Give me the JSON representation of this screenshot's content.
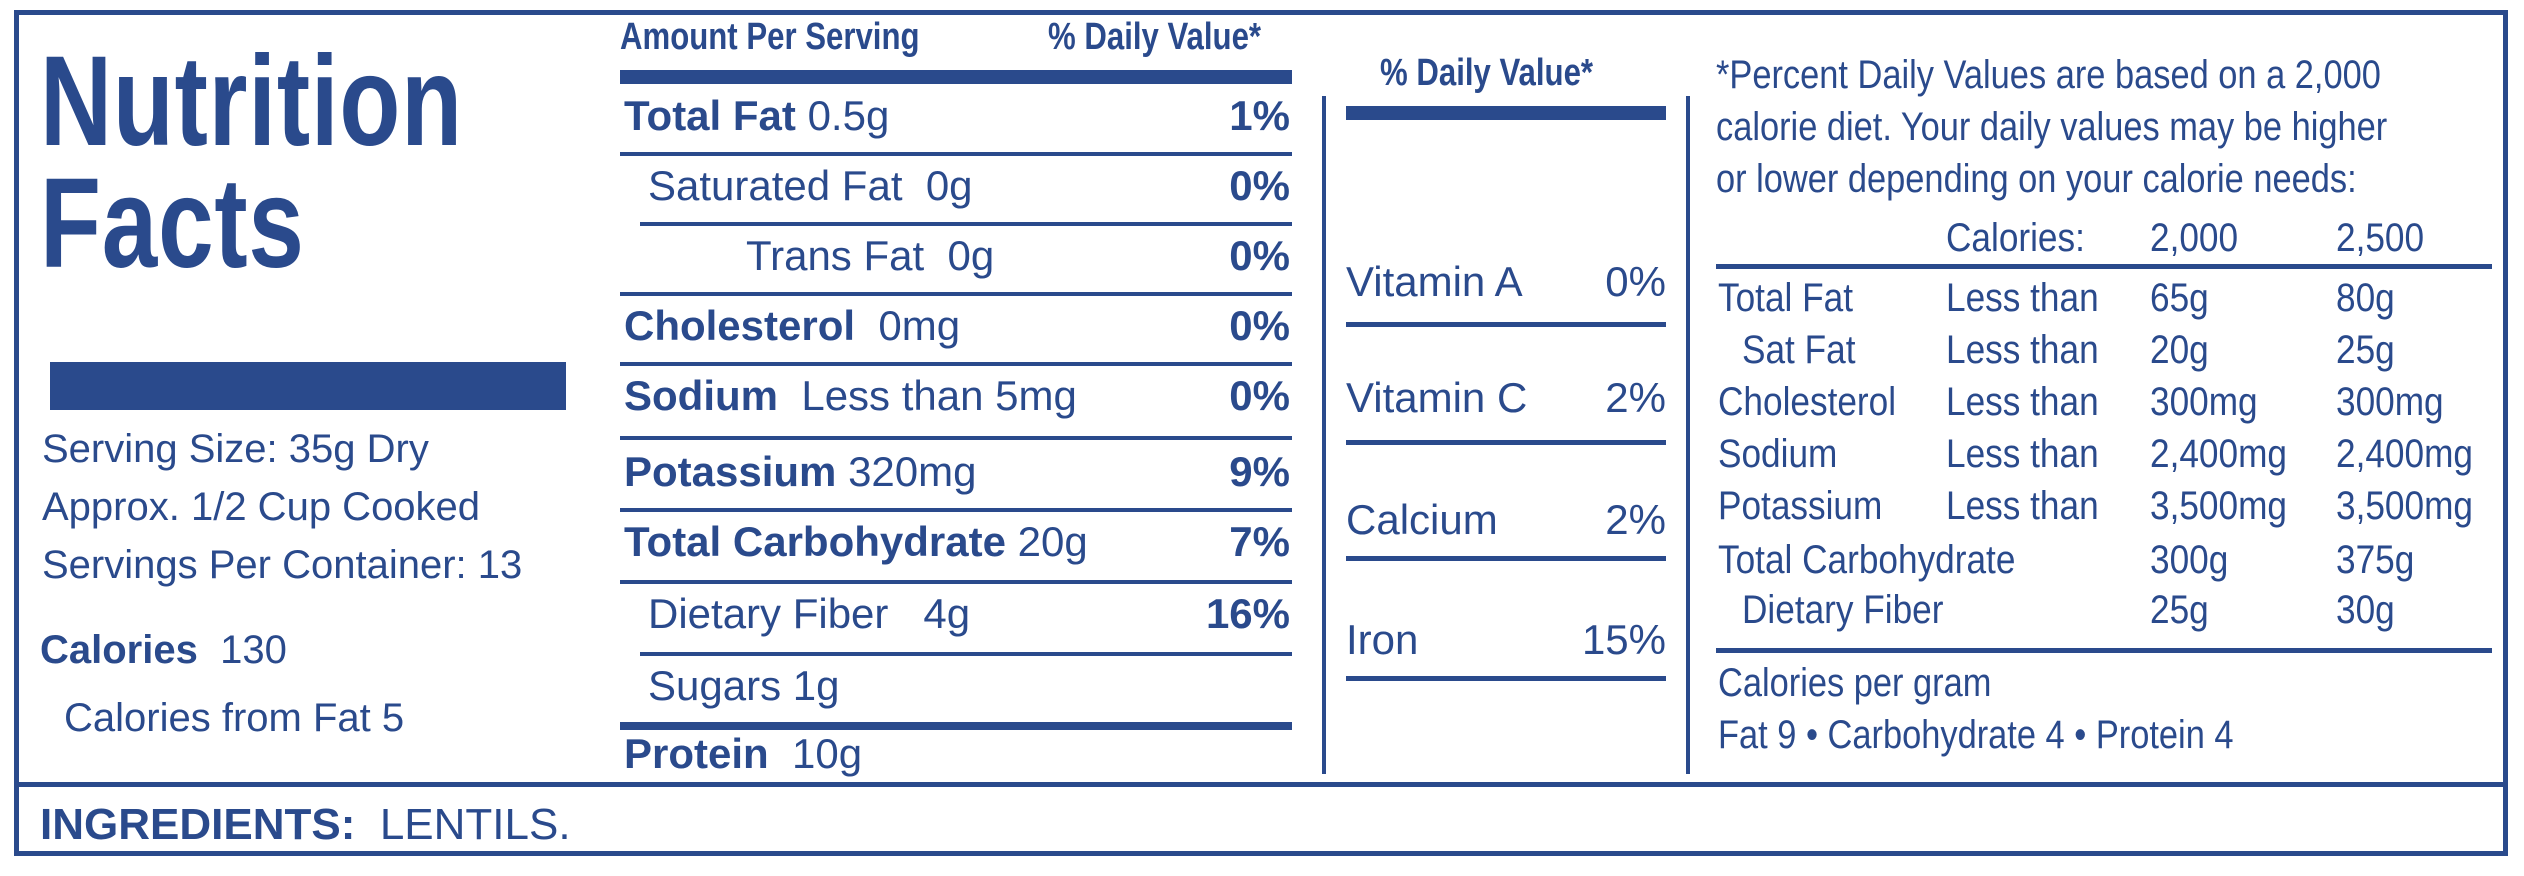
{
  "title": {
    "line1": "Nutrition",
    "line2": "Facts"
  },
  "serving": {
    "size": "Serving Size: 35g Dry",
    "approx": "Approx. 1/2 Cup Cooked",
    "per_container": "Servings Per Container:  13"
  },
  "calories": {
    "label": "Calories",
    "value": "130",
    "from_fat": "Calories from Fat 5"
  },
  "table": {
    "header_left": "Amount Per Serving",
    "header_right": "% Daily Value*",
    "rows": [
      {
        "name": "Total Fat",
        "amount": "0.5g",
        "dv": "1%"
      },
      {
        "name": "Saturated Fat",
        "amount": "0g",
        "dv": "0%"
      },
      {
        "name": "Trans Fat",
        "amount": "0g",
        "dv": "0%"
      },
      {
        "name": "Cholesterol",
        "amount": "0mg",
        "dv": "0%"
      },
      {
        "name": "Sodium",
        "amount": "Less than 5mg",
        "dv": "0%"
      },
      {
        "name": "Potassium",
        "amount": "320mg",
        "dv": "9%"
      },
      {
        "name": "Total Carbohydrate",
        "amount": "20g",
        "dv": "7%"
      },
      {
        "name": "Dietary Fiber",
        "amount": "4g",
        "dv": "16%"
      },
      {
        "name": "Sugars",
        "amount": "1g",
        "dv": ""
      },
      {
        "name": "Protein",
        "amount": "10g",
        "dv": ""
      }
    ]
  },
  "vitamins": {
    "header": "% Daily Value*",
    "items": [
      {
        "name": "Vitamin A",
        "dv": "0%"
      },
      {
        "name": "Vitamin C",
        "dv": "2%"
      },
      {
        "name": "Calcium",
        "dv": "2%"
      },
      {
        "name": "Iron",
        "dv": "15%"
      }
    ]
  },
  "footnote": {
    "line1": "*Percent Daily  Values are based on a 2,000",
    "line2": "calorie diet.  Your daily values may be higher",
    "line3": "or lower depending on your calorie needs:",
    "calories_label": "Calories:",
    "col1": "2,000",
    "col2": "2,500",
    "rows": [
      {
        "name": "Total Fat",
        "qual": "Less than",
        "v1": "65g",
        "v2": "80g"
      },
      {
        "name": "Sat Fat",
        "qual": "Less than",
        "v1": "20g",
        "v2": "25g"
      },
      {
        "name": "Cholesterol",
        "qual": "Less than",
        "v1": "300mg",
        "v2": "300mg"
      },
      {
        "name": "Sodium",
        "qual": "Less than",
        "v1": "2,400mg",
        "v2": "2,400mg"
      },
      {
        "name": "Potassium",
        "qual": "Less than",
        "v1": "3,500mg",
        "v2": "3,500mg"
      },
      {
        "name": "Total Carbohydrate",
        "qual": "",
        "v1": "300g",
        "v2": "375g"
      },
      {
        "name": "Dietary Fiber",
        "qual": "",
        "v1": "25g",
        "v2": "30g"
      }
    ],
    "per_gram_title": "Calories per gram",
    "per_gram": "Fat 9  •  Carbohydrate 4  •  Protein 4"
  },
  "ingredients": {
    "label": "INGREDIENTS:",
    "value": "LENTILS."
  },
  "colors": {
    "ink": "#2a4a8c",
    "background": "#ffffff"
  }
}
